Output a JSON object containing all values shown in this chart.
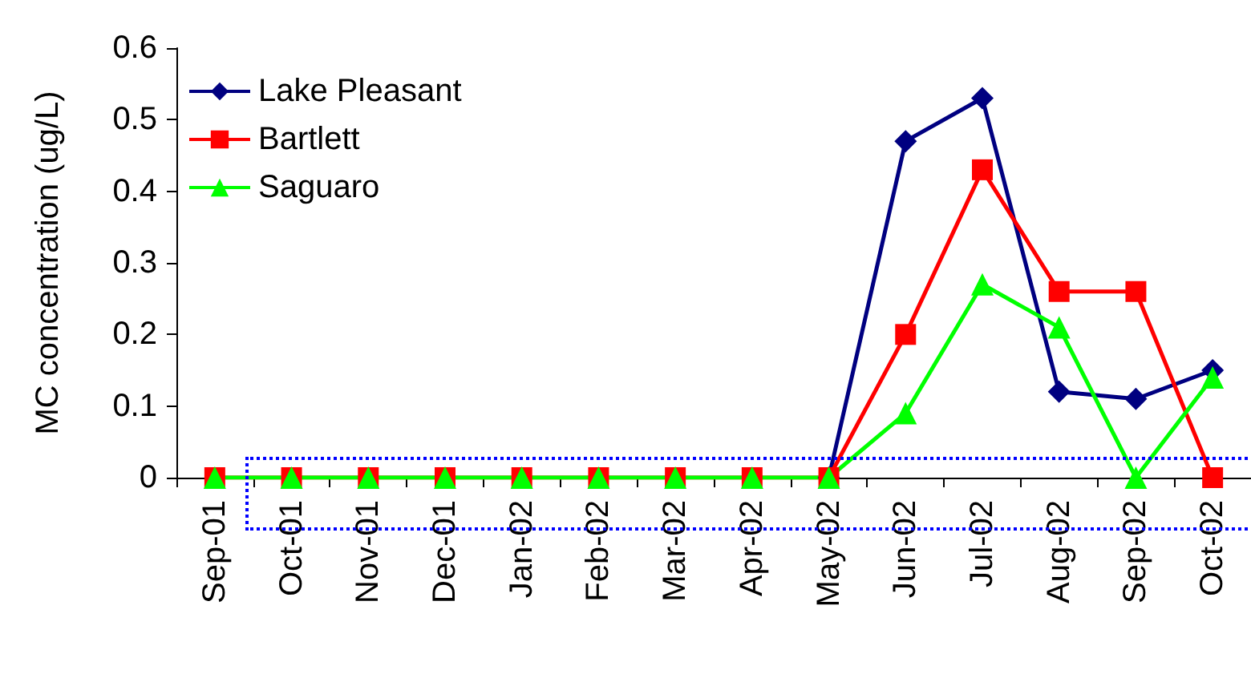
{
  "chart_data": {
    "type": "line",
    "ylabel": "MC concentration (ug/L)",
    "categories": [
      "Sep-01",
      "Oct-01",
      "Nov-01",
      "Dec-01",
      "Jan-02",
      "Feb-02",
      "Mar-02",
      "Apr-02",
      "May-02",
      "Jun-02",
      "Jul-02",
      "Aug-02",
      "Sep-02",
      "Oct-02"
    ],
    "series": [
      {
        "name": "Lake Pleasant",
        "color": "#000080",
        "marker": "diamond",
        "values": [
          null,
          null,
          null,
          null,
          null,
          null,
          null,
          null,
          0,
          0.47,
          0.53,
          0.12,
          0.11,
          0.15
        ]
      },
      {
        "name": "Bartlett",
        "color": "#ff0000",
        "marker": "square",
        "values": [
          0,
          0,
          0,
          0,
          0,
          0,
          0,
          0,
          0,
          0.2,
          0.43,
          0.26,
          0.26,
          0
        ]
      },
      {
        "name": "Saguaro",
        "color": "#00ff00",
        "marker": "triangle",
        "values": [
          0,
          0,
          0,
          0,
          0,
          0,
          0,
          0,
          0,
          0.09,
          0.27,
          0.21,
          0,
          0.14
        ]
      }
    ],
    "ylim": [
      0,
      0.6
    ],
    "yticks": [
      0,
      0.1,
      0.2,
      0.3,
      0.4,
      0.5,
      0.6
    ],
    "grid": false,
    "legend": "top left",
    "line_style": "solid"
  }
}
